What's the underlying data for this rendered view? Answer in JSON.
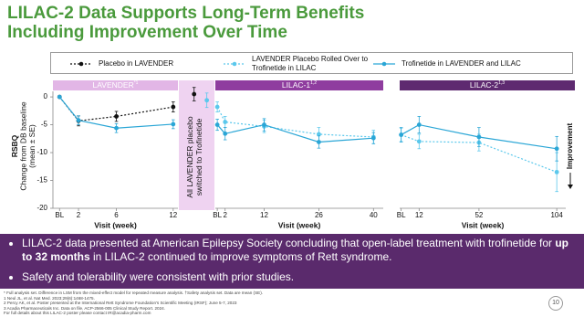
{
  "title": "LILAC-2 Data Supports Long-Term Benefits Including Improvement Over Time",
  "legend": [
    {
      "name": "Placebo in LAVENDER",
      "color": "#111111",
      "dash": true
    },
    {
      "name": "LAVENDER Placebo Rolled Over to Trofinetide in LILAC",
      "color": "#5bc8ec",
      "dash": true
    },
    {
      "name": "Trofinetide in LAVENDER and LILAC",
      "color": "#2aa6d6",
      "dash": false
    }
  ],
  "y_axis_label": [
    "RSBQ",
    "Change from DB baseline",
    "(mean ± SE)"
  ],
  "improvement_label": "Improvement",
  "chart_data": [
    {
      "type": "line",
      "title": "LAVENDER",
      "title_sup": "*1",
      "header_color": "#e2b6e6",
      "xlabel": "Visit (week)",
      "x": [
        0,
        2,
        6,
        12
      ],
      "xticks": [
        {
          "value": 0,
          "label": "BL"
        },
        2,
        6,
        12
      ],
      "xlim": [
        -0.7,
        12.5
      ],
      "ylim": [
        -20,
        1
      ],
      "yticks": [
        0,
        -5,
        -10,
        -15,
        -20
      ],
      "series": [
        {
          "color": "#111111",
          "dash": true,
          "values": [
            0,
            -4.3,
            -3.5,
            -1.8
          ],
          "errors": [
            null,
            0.9,
            0.9,
            0.9
          ]
        },
        {
          "color": "#2aa6d6",
          "dash": false,
          "values": [
            0,
            -4.2,
            -5.6,
            -4.9
          ],
          "errors": [
            null,
            0.8,
            0.8,
            0.8
          ]
        }
      ]
    },
    {
      "type": "switch",
      "annotation": [
        "All LAVENDER placebo",
        "switched to Trofinetide"
      ],
      "band_color": "#efd3f1",
      "ylim": [
        -20,
        1
      ],
      "series": [
        {
          "color": "#111111",
          "values": [
            0.5
          ],
          "errors": [
            1.2
          ]
        },
        {
          "color": "#5bc8ec",
          "values": [
            -0.6
          ],
          "errors": [
            1.3
          ]
        }
      ]
    },
    {
      "type": "line",
      "title": "LILAC-1",
      "title_sup": "1,2",
      "header_color": "#8f3d9f",
      "xlabel": "Visit (week)",
      "x": [
        0,
        2,
        12,
        26,
        40
      ],
      "xticks": [
        {
          "value": 0,
          "label": "BL"
        },
        2,
        12,
        26,
        40
      ],
      "xlim": [
        -0.5,
        42.5
      ],
      "ylim": [
        -20,
        1
      ],
      "series": [
        {
          "color": "#5bc8ec",
          "dash": true,
          "values": [
            -1.8,
            -4.5,
            -5.3,
            -6.7,
            -7.2
          ],
          "errors": [
            0.9,
            1.0,
            1.1,
            1.2,
            1.2
          ]
        },
        {
          "color": "#2aa6d6",
          "dash": false,
          "values": [
            -5.0,
            -6.6,
            -5.0,
            -8.1,
            -7.4
          ],
          "errors": [
            1.0,
            1.1,
            1.1,
            1.1,
            1.0
          ]
        }
      ]
    },
    {
      "type": "line",
      "title": "LILAC-2",
      "title_sup": "1,3",
      "header_color": "#5e2a70",
      "xlabel": "Visit (week)",
      "x": [
        0,
        12,
        52,
        104
      ],
      "xticks": [
        {
          "value": 0,
          "label": "BL"
        },
        12,
        52,
        104
      ],
      "xlim": [
        -1,
        110
      ],
      "ylim": [
        -20,
        1
      ],
      "series": [
        {
          "color": "#5bc8ec",
          "dash": true,
          "values": [
            -6.8,
            -8.0,
            -8.2,
            -13.5
          ],
          "errors": [
            1.2,
            1.3,
            1.5,
            3.5
          ]
        },
        {
          "color": "#2aa6d6",
          "dash": false,
          "values": [
            -6.8,
            -5.0,
            -7.2,
            -9.3
          ],
          "errors": [
            1.3,
            1.5,
            1.7,
            2.2
          ]
        }
      ]
    }
  ],
  "bullets": [
    {
      "text": "LILAC-2 data presented at American Epilepsy Society concluding that open-label treatment with trofinetide for ",
      "bold": "up to 32 months",
      "after": " in LILAC-2 continued to improve symptoms of Rett syndrome."
    },
    {
      "text": "Safety and tolerability were consistent with prior studies."
    }
  ],
  "footnotes": [
    "* Full analysis set. Difference in LSM from the mixed-effect model for repeated measure analysis. †Safety analysis set. Data are mean (SE).",
    "1 Neul JL, et al. Nat Med. 2023;29(6):1468-1475.",
    "2 Percy AK, et al. Poster presented at the International Rett Syndrome Foundation's Scientific Meeting (IRSF); June 5-7, 2023",
    "3 Acadia Pharmaceuticals Inc. Data on file. ACP-2566-005 Clinical Study Report. 2024.",
    "For full details about this LILAC-2 poster please contact IR@acadia-pharm.com"
  ],
  "page_number": "10"
}
